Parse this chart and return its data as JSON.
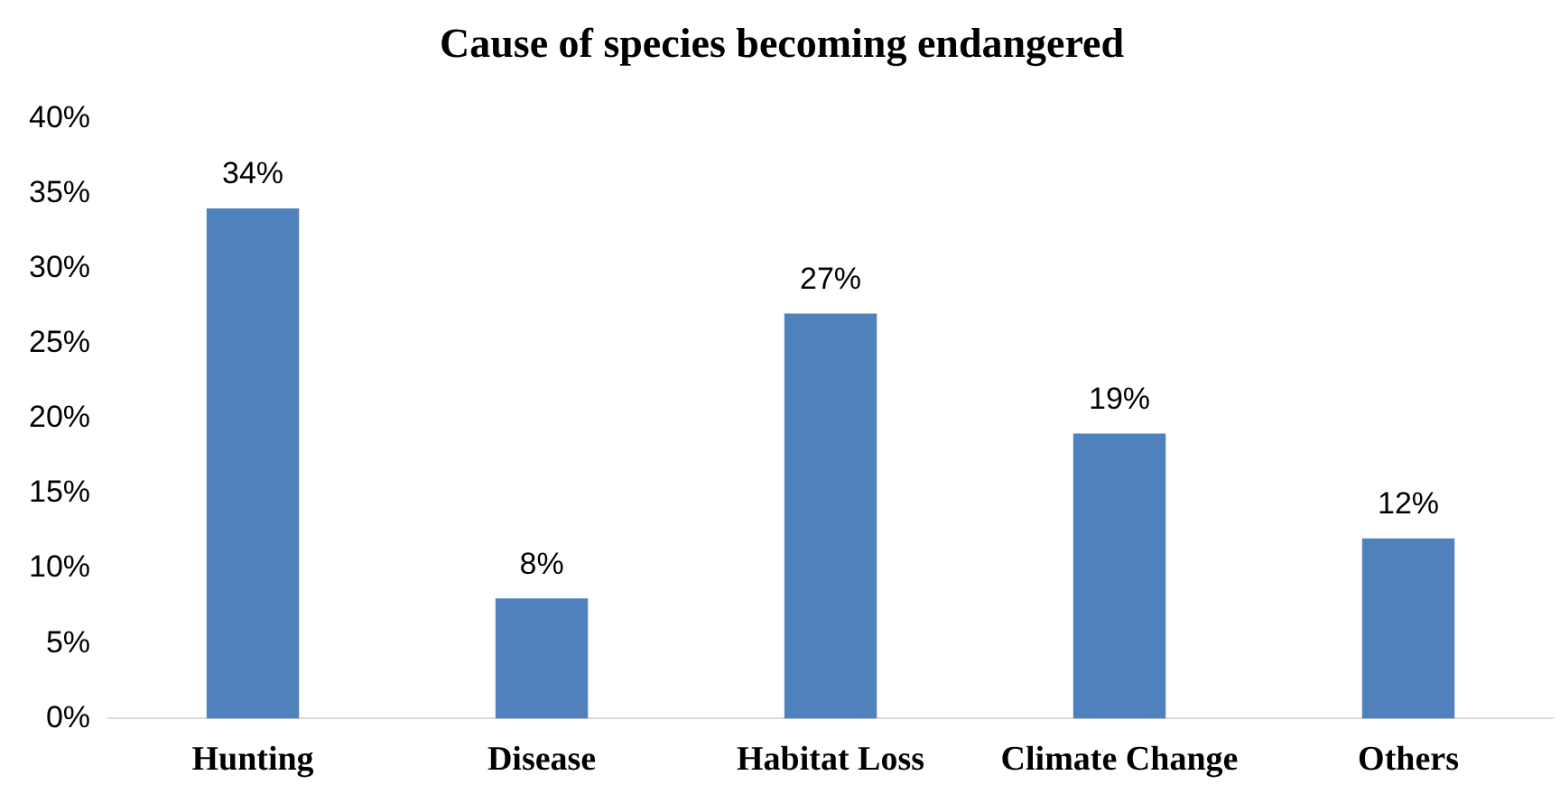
{
  "chart_data": {
    "type": "bar",
    "title": "Cause of species becoming endangered",
    "categories": [
      "Hunting",
      "Disease",
      "Habitat Loss",
      "Climate Change",
      "Others"
    ],
    "values": [
      34,
      8,
      27,
      19,
      12
    ],
    "value_labels": [
      "34%",
      "8%",
      "27%",
      "19%",
      "12%"
    ],
    "color": "#4f81bd",
    "ylim": [
      0,
      40
    ],
    "yticks": [
      {
        "value": 0,
        "label": "0%"
      },
      {
        "value": 5,
        "label": "5%"
      },
      {
        "value": 10,
        "label": "10%"
      },
      {
        "value": 15,
        "label": "15%"
      },
      {
        "value": 20,
        "label": "20%"
      },
      {
        "value": 25,
        "label": "25%"
      },
      {
        "value": 30,
        "label": "30%"
      },
      {
        "value": 35,
        "label": "35%"
      },
      {
        "value": 40,
        "label": "40%"
      }
    ],
    "grid": false,
    "legend": false
  }
}
